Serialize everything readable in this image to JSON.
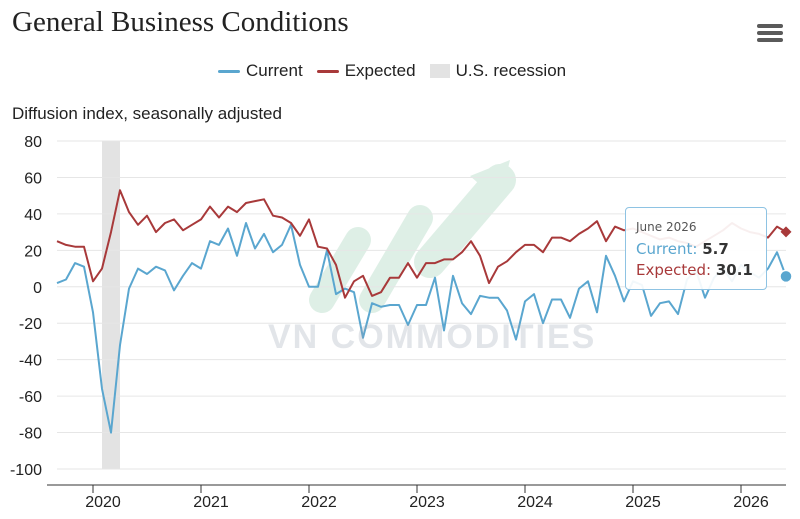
{
  "header": {
    "title": "General Business Conditions",
    "menu_icon": "hamburger-menu-icon"
  },
  "legend": {
    "current": {
      "label": "Current",
      "color": "#5aa6cf"
    },
    "expected": {
      "label": "Expected",
      "color": "#a8393a"
    },
    "recession": {
      "label": "U.S. recession",
      "color": "#e3e3e3"
    }
  },
  "watermark": "VN COMMODITIES",
  "tooltip": {
    "date": "June 2026",
    "current_label": "Current:",
    "current_value": "5.7",
    "expected_label": "Expected:",
    "expected_value": "30.1"
  },
  "chart_data": {
    "type": "line",
    "ylabel": "Diffusion index, seasonally adjusted",
    "ylim": [
      -100,
      80
    ],
    "yticks": [
      80,
      60,
      40,
      20,
      0,
      -20,
      -40,
      -60,
      -80,
      -100
    ],
    "xlim": [
      "2019-09",
      "2026-06"
    ],
    "xticks": [
      "2020",
      "2021",
      "2022",
      "2023",
      "2024",
      "2025",
      "2026"
    ],
    "grid": "horizontal",
    "legend_position": "top-center",
    "recession_shading": {
      "start": "2020-02",
      "end": "2020-04",
      "label": "U.S. recession"
    },
    "series": [
      {
        "name": "Current",
        "color": "#5aa6cf",
        "data": [
          [
            "2019-09",
            2
          ],
          [
            "2019-10",
            4
          ],
          [
            "2019-11",
            13
          ],
          [
            "2019-12",
            11
          ],
          [
            "2020-01",
            -14
          ],
          [
            "2020-02",
            -56
          ],
          [
            "2020-03",
            -80
          ],
          [
            "2020-04",
            -32
          ],
          [
            "2020-05",
            -1
          ],
          [
            "2020-06",
            10
          ],
          [
            "2020-07",
            7
          ],
          [
            "2020-08",
            11
          ],
          [
            "2020-09",
            9
          ],
          [
            "2020-10",
            -2
          ],
          [
            "2020-11",
            6
          ],
          [
            "2020-12",
            13
          ],
          [
            "2021-01",
            10
          ],
          [
            "2021-02",
            25
          ],
          [
            "2021-03",
            23
          ],
          [
            "2021-04",
            32
          ],
          [
            "2021-05",
            17
          ],
          [
            "2021-06",
            35
          ],
          [
            "2021-07",
            21
          ],
          [
            "2021-08",
            29
          ],
          [
            "2021-09",
            19
          ],
          [
            "2021-10",
            23
          ],
          [
            "2021-11",
            34
          ],
          [
            "2021-12",
            12
          ],
          [
            "2022-01",
            0
          ],
          [
            "2022-02",
            0
          ],
          [
            "2022-03",
            20
          ],
          [
            "2022-04",
            -4
          ],
          [
            "2022-05",
            -1
          ],
          [
            "2022-06",
            -3
          ],
          [
            "2022-07",
            -28
          ],
          [
            "2022-08",
            -9
          ],
          [
            "2022-09",
            -11
          ],
          [
            "2022-10",
            -10
          ],
          [
            "2022-11",
            -10
          ],
          [
            "2022-12",
            -21
          ],
          [
            "2023-01",
            -10
          ],
          [
            "2023-02",
            -10
          ],
          [
            "2023-03",
            5
          ],
          [
            "2023-04",
            -24
          ],
          [
            "2023-05",
            6
          ],
          [
            "2023-06",
            -9
          ],
          [
            "2023-07",
            -15
          ],
          [
            "2023-08",
            -5
          ],
          [
            "2023-09",
            -6
          ],
          [
            "2023-10",
            -6
          ],
          [
            "2023-11",
            -13
          ],
          [
            "2023-12",
            -29
          ],
          [
            "2024-01",
            -8
          ],
          [
            "2024-02",
            -4
          ],
          [
            "2024-03",
            -20
          ],
          [
            "2024-04",
            -7
          ],
          [
            "2024-05",
            -7
          ],
          [
            "2024-06",
            -17
          ],
          [
            "2024-07",
            -1
          ],
          [
            "2024-08",
            3
          ],
          [
            "2024-09",
            -14
          ],
          [
            "2024-10",
            17
          ],
          [
            "2024-11",
            6
          ],
          [
            "2024-12",
            -8
          ],
          [
            "2025-01",
            3
          ],
          [
            "2025-02",
            1
          ],
          [
            "2025-03",
            -16
          ],
          [
            "2025-04",
            -9
          ],
          [
            "2025-05",
            -8
          ],
          [
            "2025-06",
            -15
          ],
          [
            "2025-07",
            4
          ],
          [
            "2025-08",
            9
          ],
          [
            "2025-09",
            -6
          ],
          [
            "2025-10",
            5
          ],
          [
            "2025-11",
            10
          ],
          [
            "2025-12",
            3
          ],
          [
            "2026-01",
            12
          ],
          [
            "2026-02",
            8
          ],
          [
            "2026-03",
            5
          ],
          [
            "2026-04",
            10
          ],
          [
            "2026-05",
            19
          ],
          [
            "2026-06",
            5.7
          ]
        ]
      },
      {
        "name": "Expected",
        "color": "#a8393a",
        "data": [
          [
            "2019-09",
            25
          ],
          [
            "2019-10",
            23
          ],
          [
            "2019-11",
            22
          ],
          [
            "2019-12",
            22
          ],
          [
            "2020-01",
            3
          ],
          [
            "2020-02",
            10
          ],
          [
            "2020-03",
            30
          ],
          [
            "2020-04",
            53
          ],
          [
            "2020-05",
            41
          ],
          [
            "2020-06",
            34
          ],
          [
            "2020-07",
            39
          ],
          [
            "2020-08",
            30
          ],
          [
            "2020-09",
            35
          ],
          [
            "2020-10",
            37
          ],
          [
            "2020-11",
            31
          ],
          [
            "2020-12",
            34
          ],
          [
            "2021-01",
            37
          ],
          [
            "2021-02",
            44
          ],
          [
            "2021-03",
            38
          ],
          [
            "2021-04",
            44
          ],
          [
            "2021-05",
            41
          ],
          [
            "2021-06",
            46
          ],
          [
            "2021-07",
            47
          ],
          [
            "2021-08",
            48
          ],
          [
            "2021-09",
            39
          ],
          [
            "2021-10",
            38
          ],
          [
            "2021-11",
            35
          ],
          [
            "2021-12",
            28
          ],
          [
            "2022-01",
            37
          ],
          [
            "2022-02",
            22
          ],
          [
            "2022-03",
            21
          ],
          [
            "2022-04",
            12
          ],
          [
            "2022-05",
            -6
          ],
          [
            "2022-06",
            3
          ],
          [
            "2022-07",
            6
          ],
          [
            "2022-08",
            -5
          ],
          [
            "2022-09",
            -3
          ],
          [
            "2022-10",
            5
          ],
          [
            "2022-11",
            5
          ],
          [
            "2022-12",
            13
          ],
          [
            "2023-01",
            5
          ],
          [
            "2023-02",
            13
          ],
          [
            "2023-03",
            13
          ],
          [
            "2023-04",
            15
          ],
          [
            "2023-05",
            15
          ],
          [
            "2023-06",
            19
          ],
          [
            "2023-07",
            25
          ],
          [
            "2023-08",
            17
          ],
          [
            "2023-09",
            2
          ],
          [
            "2023-10",
            11
          ],
          [
            "2023-11",
            14
          ],
          [
            "2023-12",
            19
          ],
          [
            "2024-01",
            23
          ],
          [
            "2024-02",
            23
          ],
          [
            "2024-03",
            19
          ],
          [
            "2024-04",
            27
          ],
          [
            "2024-05",
            27
          ],
          [
            "2024-06",
            25
          ],
          [
            "2024-07",
            29
          ],
          [
            "2024-08",
            32
          ],
          [
            "2024-09",
            36
          ],
          [
            "2024-10",
            25
          ],
          [
            "2024-11",
            33
          ],
          [
            "2024-12",
            31
          ],
          [
            "2025-01",
            32
          ],
          [
            "2025-02",
            30
          ],
          [
            "2025-03",
            28
          ],
          [
            "2025-04",
            26
          ],
          [
            "2025-05",
            27
          ],
          [
            "2025-06",
            25
          ],
          [
            "2025-07",
            24
          ],
          [
            "2025-08",
            22
          ],
          [
            "2025-09",
            25
          ],
          [
            "2025-10",
            28
          ],
          [
            "2025-11",
            31
          ],
          [
            "2025-12",
            35
          ],
          [
            "2026-01",
            32
          ],
          [
            "2026-02",
            30
          ],
          [
            "2026-03",
            29
          ],
          [
            "2026-04",
            27
          ],
          [
            "2026-05",
            33
          ],
          [
            "2026-06",
            30.1
          ]
        ]
      }
    ]
  }
}
